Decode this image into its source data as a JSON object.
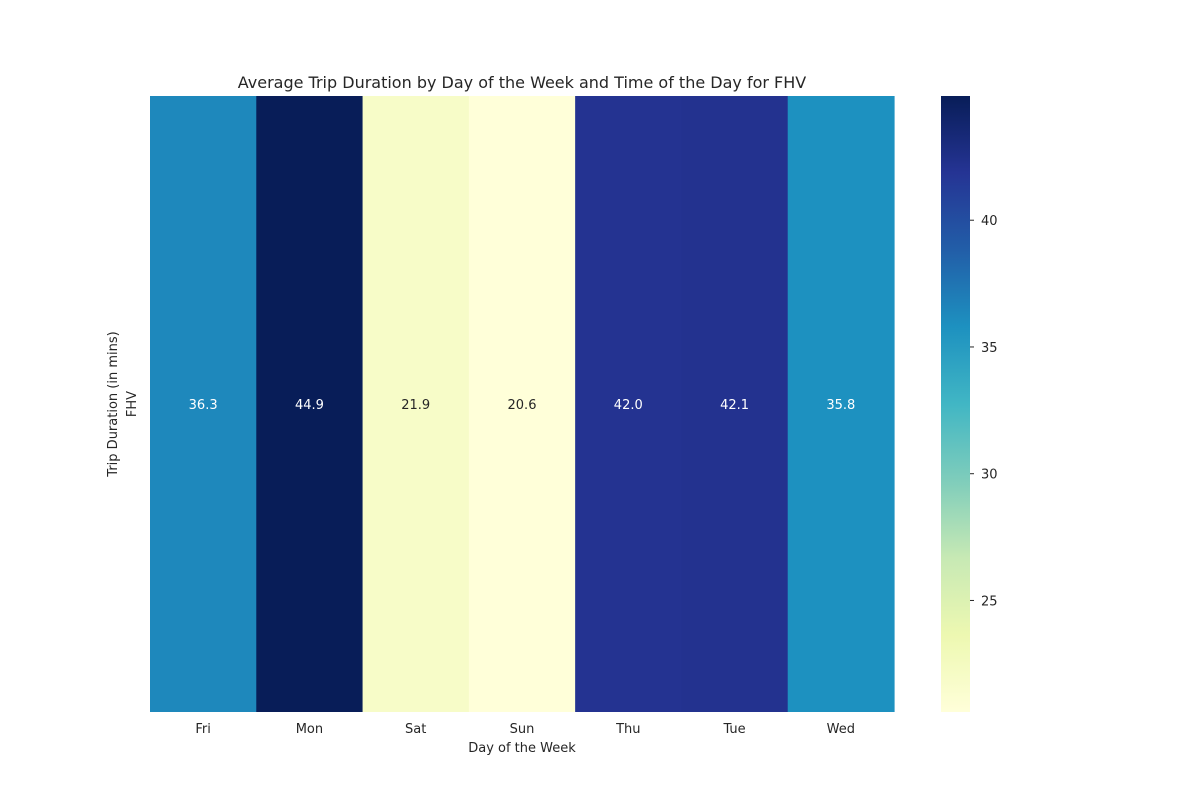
{
  "chart_data": {
    "type": "heatmap",
    "title": "Average Trip Duration by Day of the Week and Time of the Day for FHV",
    "xlabel": "Day of the Week",
    "ylabel": "Trip Duration (in mins)",
    "rows": [
      "FHV"
    ],
    "categories": [
      "Fri",
      "Mon",
      "Sat",
      "Sun",
      "Thu",
      "Tue",
      "Wed"
    ],
    "values": [
      [
        36.3,
        44.9,
        21.9,
        20.6,
        42.0,
        42.1,
        35.8
      ]
    ],
    "value_labels": [
      "36.3",
      "44.9",
      "21.9",
      "20.6",
      "42.0",
      "42.1",
      "35.8"
    ],
    "colormap": "YlGnBu",
    "colorbar": {
      "range": [
        20.6,
        44.9
      ],
      "ticks": [
        25,
        30,
        35,
        40
      ],
      "tick_labels": [
        "25",
        "30",
        "35",
        "40"
      ],
      "placement": "right"
    }
  }
}
